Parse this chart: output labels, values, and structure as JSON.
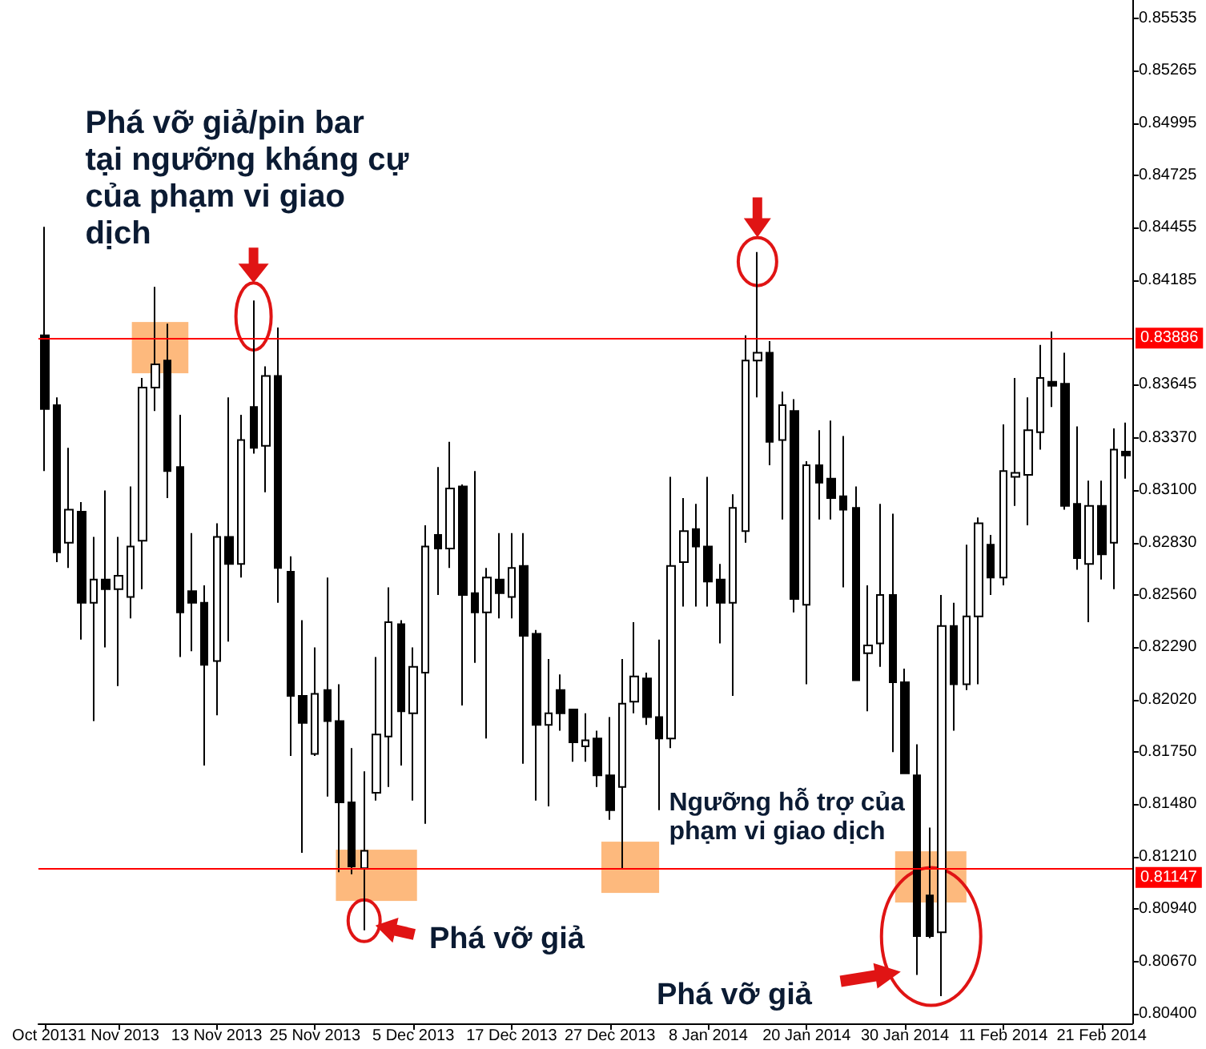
{
  "chart_data": {
    "type": "candlestick",
    "categories": [
      "Oct 2013",
      null,
      null,
      null,
      null,
      null,
      "1 Nov 2013",
      null,
      null,
      null,
      null,
      null,
      null,
      null,
      "13 Nov 2013",
      null,
      null,
      null,
      null,
      null,
      null,
      null,
      "25 Nov 2013",
      null,
      null,
      null,
      null,
      null,
      null,
      null,
      "5 Dec 2013",
      null,
      null,
      null,
      null,
      null,
      null,
      null,
      "17 Dec 2013",
      null,
      null,
      null,
      null,
      null,
      null,
      null,
      "27 Dec 2013",
      null,
      null,
      null,
      null,
      null,
      null,
      null,
      "8 Jan 2014",
      null,
      null,
      null,
      null,
      null,
      null,
      null,
      "20 Jan 2014",
      null,
      null,
      null,
      null,
      null,
      null,
      null,
      "30 Jan 2014",
      null,
      null,
      null,
      null,
      null,
      null,
      null,
      "11 Feb 2014",
      null,
      null,
      null,
      null,
      null,
      null,
      null,
      "21 Feb 2014",
      null,
      null
    ],
    "ohlc": [
      [
        0.839,
        0.8446,
        0.832,
        0.8352
      ],
      [
        0.8354,
        0.8358,
        0.8273,
        0.8278
      ],
      [
        0.8283,
        0.8332,
        0.827,
        0.83
      ],
      [
        0.8299,
        0.8304,
        0.8233,
        0.8252
      ],
      [
        0.8252,
        0.8286,
        0.8191,
        0.8264
      ],
      [
        0.8264,
        0.831,
        0.8229,
        0.8259
      ],
      [
        0.8259,
        0.8286,
        0.8209,
        0.8266
      ],
      [
        0.8255,
        0.8312,
        0.8244,
        0.8281
      ],
      [
        0.8284,
        0.8368,
        0.8259,
        0.8363
      ],
      [
        0.8363,
        0.8415,
        0.8351,
        0.8375
      ],
      [
        0.8377,
        0.8396,
        0.8306,
        0.832
      ],
      [
        0.8322,
        0.8349,
        0.8224,
        0.8247
      ],
      [
        0.8258,
        0.8288,
        0.8227,
        0.8252
      ],
      [
        0.8252,
        0.8261,
        0.8168,
        0.822
      ],
      [
        0.8222,
        0.8293,
        0.8194,
        0.8286
      ],
      [
        0.8286,
        0.8358,
        0.8232,
        0.8272
      ],
      [
        0.8272,
        0.8349,
        0.8265,
        0.8336
      ],
      [
        0.8353,
        0.8408,
        0.8329,
        0.8332
      ],
      [
        0.8333,
        0.8374,
        0.8309,
        0.8369
      ],
      [
        0.8369,
        0.8394,
        0.8252,
        0.827
      ],
      [
        0.8268,
        0.8276,
        0.8173,
        0.8204
      ],
      [
        0.8204,
        0.8243,
        0.8123,
        0.819
      ],
      [
        0.8174,
        0.8229,
        0.8173,
        0.8205
      ],
      [
        0.8207,
        0.8265,
        0.8152,
        0.8191
      ],
      [
        0.8191,
        0.821,
        0.8113,
        0.8149
      ],
      [
        0.8149,
        0.8177,
        0.8112,
        0.8116
      ],
      [
        0.8115,
        0.8165,
        0.8083,
        0.8124
      ],
      [
        0.8154,
        0.8224,
        0.815,
        0.8184
      ],
      [
        0.8183,
        0.826,
        0.8157,
        0.8242
      ],
      [
        0.8241,
        0.8243,
        0.8168,
        0.8196
      ],
      [
        0.8195,
        0.8229,
        0.815,
        0.8219
      ],
      [
        0.8216,
        0.8292,
        0.8138,
        0.8281
      ],
      [
        0.8287,
        0.8322,
        0.8256,
        0.828
      ],
      [
        0.828,
        0.8335,
        0.827,
        0.8311
      ],
      [
        0.8312,
        0.8313,
        0.8199,
        0.8256
      ],
      [
        0.8257,
        0.832,
        0.8221,
        0.8247
      ],
      [
        0.8247,
        0.827,
        0.8182,
        0.8265
      ],
      [
        0.8264,
        0.8288,
        0.8244,
        0.8257
      ],
      [
        0.8255,
        0.8288,
        0.8244,
        0.827
      ],
      [
        0.8271,
        0.8288,
        0.8169,
        0.8235
      ],
      [
        0.8236,
        0.8238,
        0.815,
        0.8189
      ],
      [
        0.8189,
        0.8223,
        0.8147,
        0.8195
      ],
      [
        0.8207,
        0.8215,
        0.8186,
        0.8195
      ],
      [
        0.8197,
        0.8197,
        0.817,
        0.818
      ],
      [
        0.8178,
        0.8195,
        0.817,
        0.8181
      ],
      [
        0.8182,
        0.8186,
        0.8157,
        0.8163
      ],
      [
        0.8163,
        0.8193,
        0.814,
        0.8145
      ],
      [
        0.8157,
        0.8223,
        0.8115,
        0.82
      ],
      [
        0.8201,
        0.8242,
        0.8195,
        0.8214
      ],
      [
        0.8213,
        0.8216,
        0.8189,
        0.8193
      ],
      [
        0.8193,
        0.8233,
        0.8145,
        0.8182
      ],
      [
        0.8182,
        0.8317,
        0.8177,
        0.8271
      ],
      [
        0.8273,
        0.8306,
        0.825,
        0.8289
      ],
      [
        0.829,
        0.8303,
        0.825,
        0.8281
      ],
      [
        0.8281,
        0.8317,
        0.825,
        0.8263
      ],
      [
        0.8264,
        0.8272,
        0.8231,
        0.8252
      ],
      [
        0.8252,
        0.8308,
        0.8204,
        0.8301
      ],
      [
        0.8289,
        0.839,
        0.8283,
        0.8377
      ],
      [
        0.8377,
        0.8433,
        0.8358,
        0.8381
      ],
      [
        0.8381,
        0.8387,
        0.8323,
        0.8335
      ],
      [
        0.8336,
        0.8361,
        0.8295,
        0.8354
      ],
      [
        0.8351,
        0.8357,
        0.8247,
        0.8254
      ],
      [
        0.8251,
        0.8325,
        0.821,
        0.8323
      ],
      [
        0.8323,
        0.8341,
        0.8295,
        0.8314
      ],
      [
        0.8316,
        0.8346,
        0.8295,
        0.8306
      ],
      [
        0.8307,
        0.8338,
        0.826,
        0.83
      ],
      [
        0.8301,
        0.8312,
        0.8212,
        0.8212
      ],
      [
        0.8226,
        0.8261,
        0.8196,
        0.823
      ],
      [
        0.8231,
        0.8303,
        0.8219,
        0.8256
      ],
      [
        0.8256,
        0.8298,
        0.8175,
        0.8211
      ],
      [
        0.8211,
        0.8218,
        0.8164,
        0.8164
      ],
      [
        0.8163,
        0.8179,
        0.806,
        0.808
      ],
      [
        0.8101,
        0.8136,
        0.8079,
        0.808
      ],
      [
        0.8082,
        0.8256,
        0.8049,
        0.824
      ],
      [
        0.824,
        0.8252,
        0.8186,
        0.821
      ],
      [
        0.821,
        0.8282,
        0.8207,
        0.8245
      ],
      [
        0.8245,
        0.8296,
        0.821,
        0.8293
      ],
      [
        0.8282,
        0.8287,
        0.8256,
        0.8265
      ],
      [
        0.8265,
        0.8344,
        0.8261,
        0.832
      ],
      [
        0.8317,
        0.8368,
        0.8302,
        0.8319
      ],
      [
        0.8318,
        0.8358,
        0.8292,
        0.8341
      ],
      [
        0.834,
        0.8385,
        0.8331,
        0.8368
      ],
      [
        0.8366,
        0.8392,
        0.8353,
        0.8364
      ],
      [
        0.8365,
        0.8381,
        0.83,
        0.8302
      ],
      [
        0.8303,
        0.8343,
        0.8269,
        0.8275
      ],
      [
        0.8272,
        0.8315,
        0.8242,
        0.8302
      ],
      [
        0.8302,
        0.8315,
        0.8264,
        0.8277
      ],
      [
        0.8283,
        0.8342,
        0.8259,
        0.8331
      ],
      [
        0.833,
        0.8345,
        0.8316,
        0.8328
      ]
    ],
    "color": "#000000",
    "colors": [
      "#000000",
      "#000000",
      "#ffffff",
      "#000000",
      "#ffffff",
      "#000000",
      "#ffffff",
      "#ffffff",
      "#ffffff",
      "#ffffff",
      "#000000",
      "#000000",
      "#000000",
      "#000000",
      "#ffffff",
      "#000000",
      "#ffffff",
      "#000000",
      "#ffffff",
      "#000000",
      "#000000",
      "#000000",
      "#ffffff",
      "#000000",
      "#000000",
      "#000000",
      "#ffffff",
      "#ffffff",
      "#ffffff",
      "#000000",
      "#ffffff",
      "#ffffff",
      "#000000",
      "#ffffff",
      "#000000",
      "#000000",
      "#ffffff",
      "#000000",
      "#ffffff",
      "#000000",
      "#000000",
      "#ffffff",
      "#000000",
      "#000000",
      "#ffffff",
      "#000000",
      "#000000",
      "#ffffff",
      "#ffffff",
      "#000000",
      "#000000",
      "#ffffff",
      "#ffffff",
      "#000000",
      "#000000",
      "#000000",
      "#ffffff",
      "#ffffff",
      "#ffffff",
      "#000000",
      "#ffffff",
      "#000000",
      "#ffffff",
      "#000000",
      "#000000",
      "#000000",
      "#000000",
      "#ffffff",
      "#ffffff",
      "#000000",
      "#000000",
      "#000000",
      "#000000",
      "#ffffff",
      "#000000",
      "#ffffff",
      "#ffffff",
      "#000000",
      "#ffffff",
      "#ffffff",
      "#ffffff",
      "#ffffff",
      "#000000",
      "#000000",
      "#000000",
      "#ffffff",
      "#000000",
      "#ffffff",
      "#000000"
    ],
    "ylim": [
      0.8035,
      0.8563
    ],
    "yticks": [
      {
        "value": 0.804,
        "label": "0.80400"
      },
      {
        "value": 0.8067,
        "label": "0.80670"
      },
      {
        "value": 0.8094,
        "label": "0.80940"
      },
      {
        "value": 0.8121,
        "label": "0.81210"
      },
      {
        "value": 0.8148,
        "label": "0.81480"
      },
      {
        "value": 0.8175,
        "label": "0.81750"
      },
      {
        "value": 0.8202,
        "label": "0.82020"
      },
      {
        "value": 0.8229,
        "label": "0.82290"
      },
      {
        "value": 0.8256,
        "label": "0.82560"
      },
      {
        "value": 0.8283,
        "label": "0.82830"
      },
      {
        "value": 0.831,
        "label": "0.83100"
      },
      {
        "value": 0.8337,
        "label": "0.83370"
      },
      0.83645,
      0.84185,
      0.84455,
      0.84725,
      0.84995,
      0.85265,
      0.85535
    ],
    "ref_lines": [
      {
        "axis": "y",
        "value": 0.83886,
        "label": "0.83886",
        "color": "#ff0000"
      },
      {
        "axis": "y",
        "value": 0.81147,
        "label": "0.81147",
        "color": "#ff0000"
      }
    ],
    "annotations": [
      "Phá vỡ giả/pin bar tại ngưỡng kháng cự của phạm vi giao dịch",
      "Ngưỡng hỗ trợ của phạm vi giao dịch",
      "Phá vỡ giả",
      "Phá vỡ giả"
    ]
  }
}
